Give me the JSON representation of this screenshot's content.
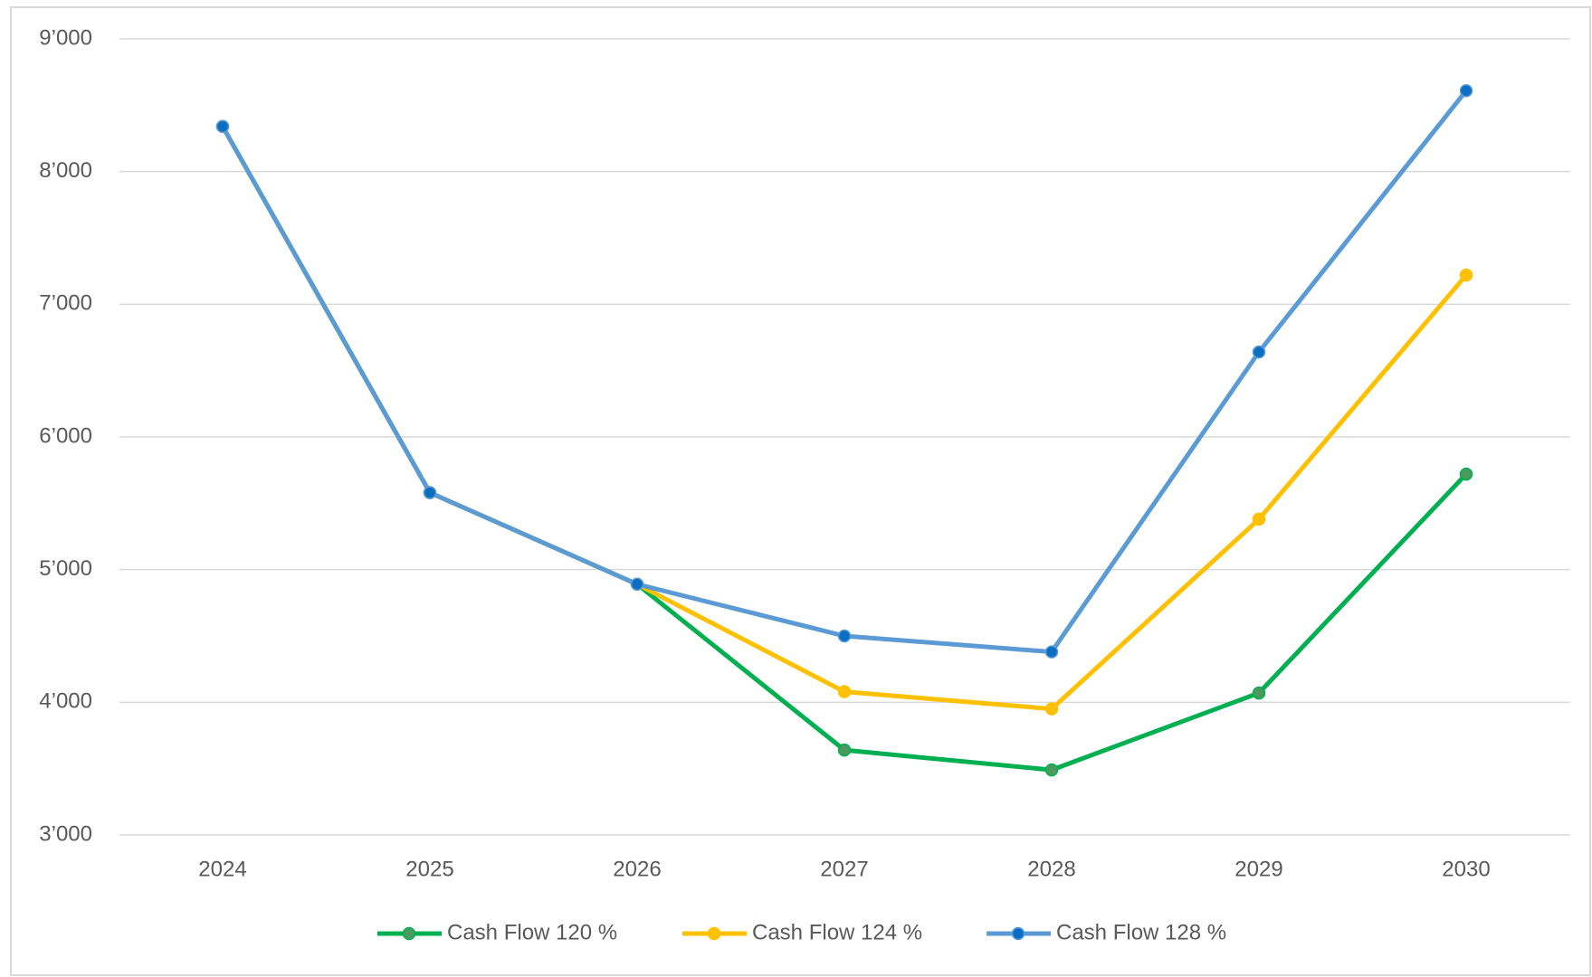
{
  "chart_data": {
    "type": "line",
    "categories": [
      "2024",
      "2025",
      "2026",
      "2027",
      "2028",
      "2029",
      "2030"
    ],
    "series": [
      {
        "name": "Cash Flow 120 %",
        "color": "#00b050",
        "marker_color": "#4a9a5e",
        "values": [
          8340,
          5580,
          4890,
          3640,
          3490,
          4070,
          5720
        ]
      },
      {
        "name": "Cash Flow 124 %",
        "color": "#ffc000",
        "marker_color": "#ffc000",
        "values": [
          8340,
          5580,
          4890,
          4080,
          3950,
          5380,
          7220
        ]
      },
      {
        "name": "Cash Flow 128 %",
        "color": "#5b9bd5",
        "marker_color": "#0a6fc2",
        "values": [
          8340,
          5580,
          4890,
          4500,
          4380,
          6640,
          8610
        ]
      }
    ],
    "ylim": [
      3000,
      9000
    ],
    "yticks": [
      {
        "value": 3000,
        "label": "3’000"
      },
      {
        "value": 4000,
        "label": "4’000"
      },
      {
        "value": 5000,
        "label": "5’000"
      },
      {
        "value": 6000,
        "label": "6’000"
      },
      {
        "value": 7000,
        "label": "7’000"
      },
      {
        "value": 8000,
        "label": "8’000"
      },
      {
        "value": 9000,
        "label": "9’000"
      }
    ],
    "grid": true,
    "legend": "bottom"
  }
}
